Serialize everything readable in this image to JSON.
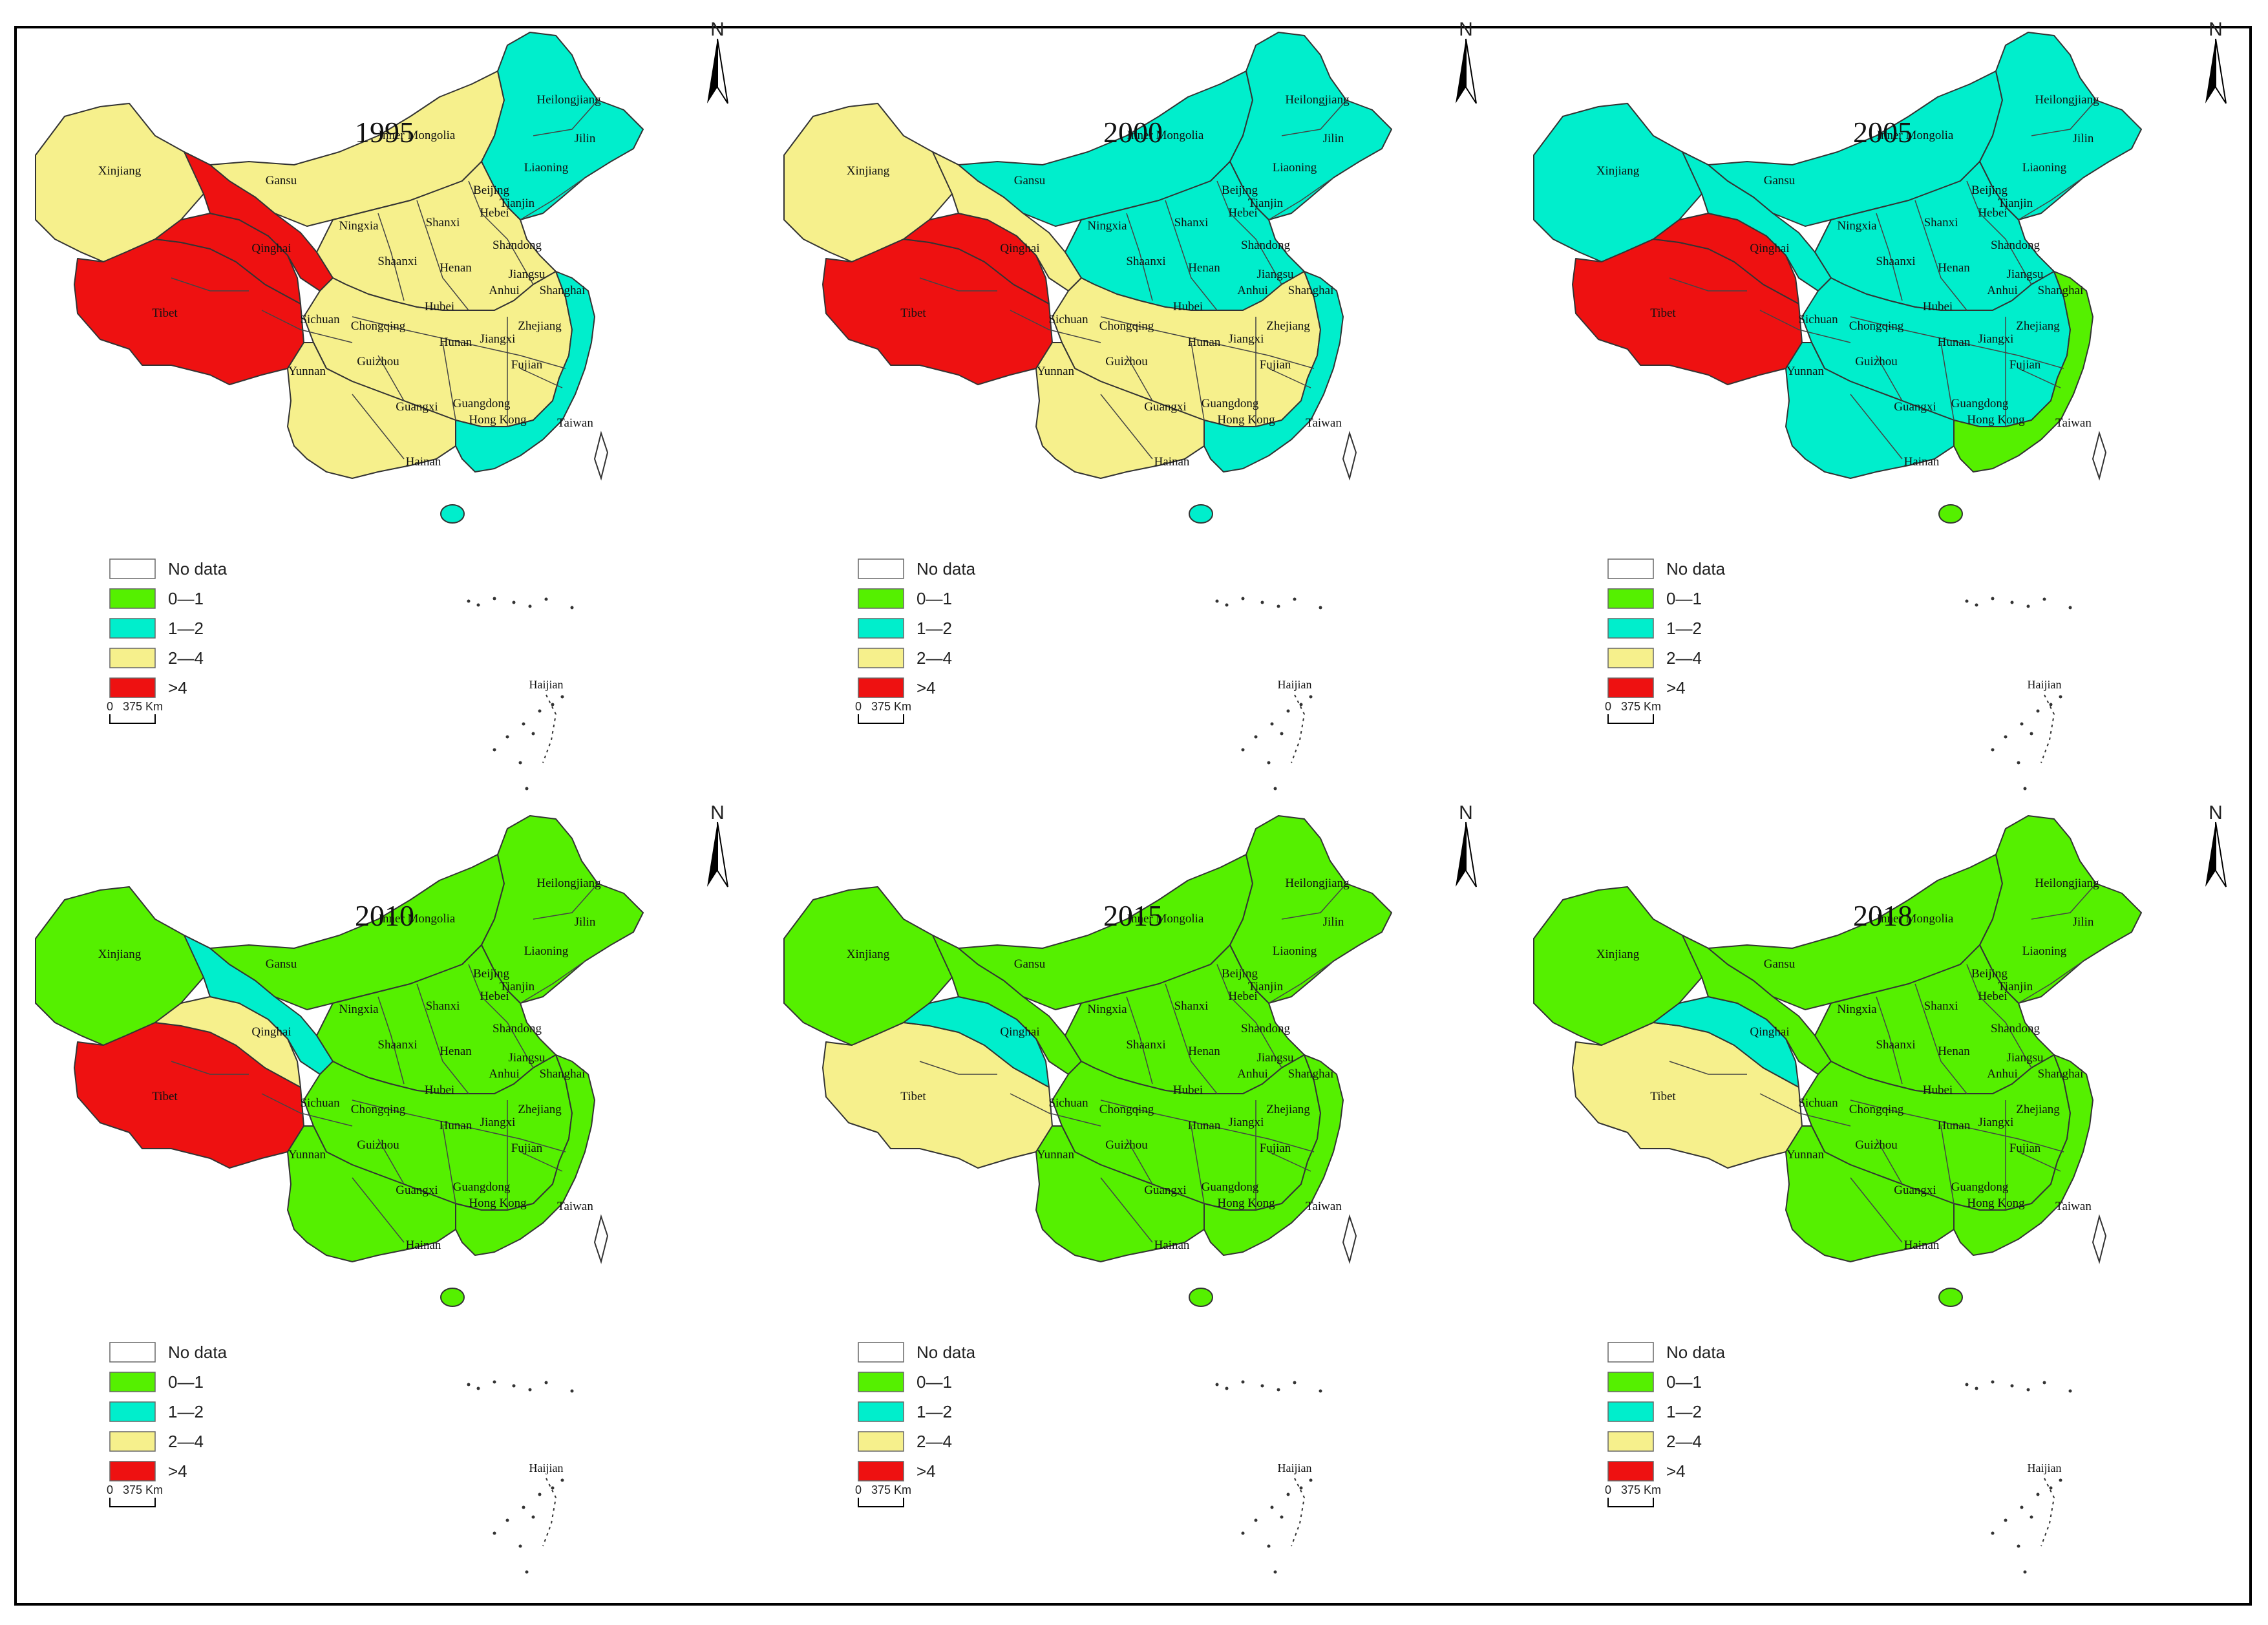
{
  "colors": {
    "no_data": "#ffffff",
    "c1": "#55f000",
    "c2": "#00eecc",
    "c3": "#f6f08c",
    "c4": "#ee1111"
  },
  "legend": {
    "no_data": "No data",
    "classes": [
      "0—1",
      "1—2",
      "2—4",
      ">4"
    ],
    "scale_start": "0",
    "scale_end": "375 Km",
    "north": "N",
    "south_sea_label": "Haijian"
  },
  "province_labels": [
    "Heilongjiang",
    "Jilin",
    "Liaoning",
    "Inner Mongolia",
    "Beijing",
    "Tianjin",
    "Hebei",
    "Shanxi",
    "Shandong",
    "Henan",
    "Jiangsu",
    "Shanghai",
    "Anhui",
    "Zhejiang",
    "Hubei",
    "Jiangxi",
    "Hunan",
    "Fujian",
    "Guangdong",
    "Guangxi",
    "Hainan",
    "Guizhou",
    "Yunnan",
    "Sichuan",
    "Chongqing",
    "Shaanxi",
    "Ningxia",
    "Gansu",
    "Qinghai",
    "Xinjiang",
    "Tibet",
    "Taiwan",
    "Hong Kong"
  ],
  "maps": [
    {
      "year": "1995",
      "regions": {
        "west": 3,
        "gansu": 4,
        "qinghai": 4,
        "tibet": 4,
        "imong": 3,
        "northeast": 2,
        "north": 3,
        "central": 3,
        "southwest": 3,
        "coast": 2
      }
    },
    {
      "year": "2000",
      "regions": {
        "west": 3,
        "gansu": 3,
        "qinghai": 4,
        "tibet": 4,
        "imong": 2,
        "northeast": 2,
        "north": 2,
        "central": 3,
        "southwest": 3,
        "coast": 2
      }
    },
    {
      "year": "2005",
      "regions": {
        "west": 2,
        "gansu": 2,
        "qinghai": 4,
        "tibet": 4,
        "imong": 2,
        "northeast": 2,
        "north": 2,
        "central": 2,
        "southwest": 2,
        "coast": 1
      }
    },
    {
      "year": "2010",
      "regions": {
        "west": 1,
        "gansu": 2,
        "qinghai": 3,
        "tibet": 4,
        "imong": 1,
        "northeast": 1,
        "north": 1,
        "central": 1,
        "southwest": 1,
        "coast": 1
      }
    },
    {
      "year": "2015",
      "regions": {
        "west": 1,
        "gansu": 1,
        "qinghai": 2,
        "tibet": 3,
        "imong": 1,
        "northeast": 1,
        "north": 1,
        "central": 1,
        "southwest": 1,
        "coast": 1
      }
    },
    {
      "year": "2018",
      "regions": {
        "west": 1,
        "gansu": 1,
        "qinghai": 2,
        "tibet": 3,
        "imong": 1,
        "northeast": 1,
        "north": 1,
        "central": 1,
        "southwest": 1,
        "coast": 1
      }
    }
  ]
}
